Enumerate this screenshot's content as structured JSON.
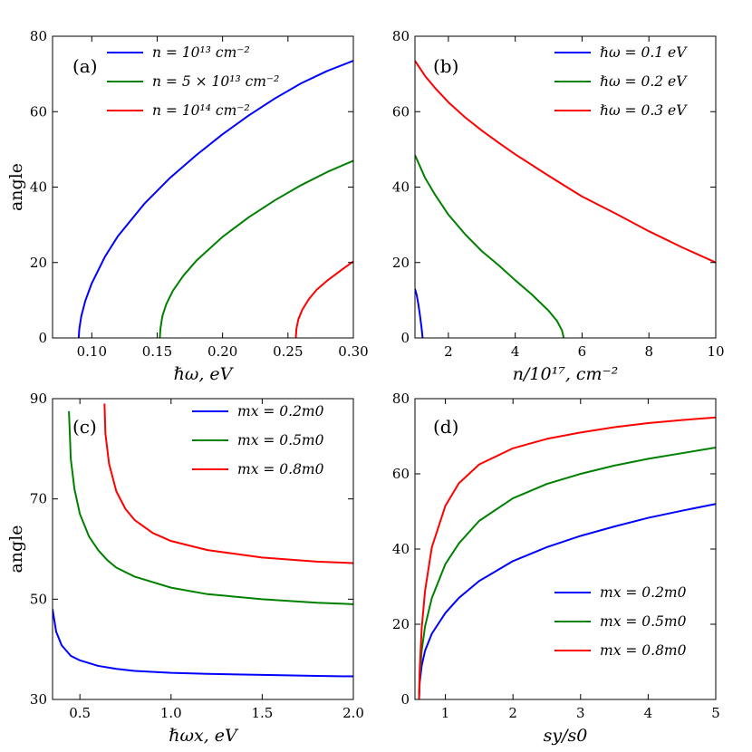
{
  "chart_data": [
    {
      "id": "a",
      "type": "line",
      "panel_label": "(a)",
      "xlabel": "ℏω, eV",
      "ylabel": "angle",
      "xlim": [
        0.07,
        0.3
      ],
      "ylim": [
        0,
        80
      ],
      "xticks": [
        0.1,
        0.15,
        0.2,
        0.25,
        0.3
      ],
      "xtick_labels": [
        "0.10",
        "0.15",
        "0.20",
        "0.25",
        "0.30"
      ],
      "yticks": [
        0,
        20,
        40,
        60,
        80
      ],
      "ytick_labels": [
        "0",
        "20",
        "40",
        "60",
        "80"
      ],
      "legend_position": "top-left",
      "series": [
        {
          "name": "n = 10¹³ cm⁻²",
          "color": "#0000ff",
          "x": [
            0.09,
            0.0905,
            0.092,
            0.095,
            0.1,
            0.11,
            0.12,
            0.14,
            0.16,
            0.18,
            0.2,
            0.22,
            0.24,
            0.26,
            0.28,
            0.3
          ],
          "y": [
            0,
            2.5,
            5.8,
            9.8,
            14.5,
            21.5,
            27.0,
            35.5,
            42.5,
            48.5,
            54.0,
            59.0,
            63.5,
            67.5,
            70.8,
            73.5
          ]
        },
        {
          "name": "n = 5 × 10¹³ cm⁻²",
          "color": "#008000",
          "x": [
            0.152,
            0.1525,
            0.154,
            0.157,
            0.162,
            0.17,
            0.18,
            0.2,
            0.22,
            0.24,
            0.26,
            0.28,
            0.3
          ],
          "y": [
            0,
            2.5,
            5.8,
            9.0,
            12.5,
            16.5,
            20.5,
            26.8,
            32.0,
            36.5,
            40.5,
            44.0,
            47.0
          ]
        },
        {
          "name": "n = 10¹⁴ cm⁻²",
          "color": "#ff0000",
          "x": [
            0.256,
            0.2565,
            0.258,
            0.261,
            0.266,
            0.272,
            0.28,
            0.29,
            0.3
          ],
          "y": [
            0,
            2.5,
            5.0,
            7.5,
            10.3,
            12.8,
            15.2,
            17.8,
            20.3
          ]
        }
      ]
    },
    {
      "id": "b",
      "type": "line",
      "panel_label": "(b)",
      "xlabel": "n/10¹⁷, cm⁻²",
      "ylabel": "",
      "xlim": [
        1,
        10
      ],
      "ylim": [
        0,
        80
      ],
      "xticks": [
        2,
        4,
        6,
        8,
        10
      ],
      "xtick_labels": [
        "2",
        "4",
        "6",
        "8",
        "10"
      ],
      "yticks": [
        0,
        20,
        40,
        60,
        80
      ],
      "ytick_labels": [
        "0",
        "20",
        "40",
        "60",
        "80"
      ],
      "legend_position": "top-right",
      "series": [
        {
          "name": "ℏω = 0.1 eV",
          "color": "#0000ff",
          "x": [
            1.0,
            1.05,
            1.1,
            1.15,
            1.2,
            1.23
          ],
          "y": [
            13.0,
            11.5,
            9.0,
            6.0,
            2.5,
            0
          ]
        },
        {
          "name": "ℏω = 0.2 eV",
          "color": "#008000",
          "x": [
            1.0,
            1.3,
            1.6,
            2.0,
            2.5,
            3.0,
            3.5,
            4.0,
            4.5,
            5.0,
            5.25,
            5.4,
            5.45
          ],
          "y": [
            48.5,
            42.5,
            38.0,
            32.7,
            27.5,
            23.0,
            19.3,
            15.3,
            11.5,
            7.2,
            4.5,
            2.0,
            0
          ]
        },
        {
          "name": "ℏω = 0.3 eV",
          "color": "#ff0000",
          "x": [
            1.0,
            1.3,
            1.6,
            2.0,
            2.5,
            3.0,
            3.5,
            4.0,
            5.0,
            6.0,
            7.0,
            8.0,
            9.0,
            10.0
          ],
          "y": [
            73.5,
            69.5,
            66.3,
            62.5,
            58.5,
            55.0,
            51.8,
            48.7,
            43.0,
            37.5,
            33.0,
            28.3,
            24.0,
            20.0
          ]
        }
      ]
    },
    {
      "id": "c",
      "type": "line",
      "panel_label": "(c)",
      "xlabel": "ℏωx, eV",
      "ylabel": "angle",
      "xlim": [
        0.35,
        2.0
      ],
      "ylim": [
        30,
        90
      ],
      "xticks": [
        0.5,
        1.0,
        1.5,
        2.0
      ],
      "xtick_labels": [
        "0.5",
        "1.0",
        "1.5",
        "2.0"
      ],
      "yticks": [
        30,
        50,
        70,
        90
      ],
      "ytick_labels": [
        "30",
        "50",
        "70",
        "90"
      ],
      "legend_position": "top-right",
      "series": [
        {
          "name": "mx = 0.2m0",
          "color": "#0000ff",
          "x": [
            0.35,
            0.37,
            0.4,
            0.45,
            0.5,
            0.6,
            0.7,
            0.8,
            1.0,
            1.2,
            1.5,
            1.8,
            2.0
          ],
          "y": [
            48.0,
            43.5,
            40.8,
            38.7,
            37.8,
            36.7,
            36.1,
            35.7,
            35.3,
            35.1,
            34.9,
            34.7,
            34.6
          ]
        },
        {
          "name": "mx = 0.5m0",
          "color": "#008000",
          "x": [
            0.44,
            0.45,
            0.47,
            0.5,
            0.55,
            0.6,
            0.65,
            0.7,
            0.8,
            1.0,
            1.2,
            1.5,
            1.8,
            2.0
          ],
          "y": [
            87.5,
            78.0,
            72.0,
            67.0,
            62.5,
            59.8,
            57.8,
            56.3,
            54.5,
            52.3,
            51.0,
            50.0,
            49.3,
            49.0
          ]
        },
        {
          "name": "mx = 0.8m0",
          "color": "#ff0000",
          "x": [
            0.635,
            0.64,
            0.66,
            0.7,
            0.75,
            0.8,
            0.9,
            1.0,
            1.2,
            1.5,
            1.8,
            2.0
          ],
          "y": [
            89.0,
            83.0,
            77.0,
            71.5,
            68.0,
            65.8,
            63.2,
            61.6,
            59.8,
            58.3,
            57.5,
            57.2
          ]
        }
      ]
    },
    {
      "id": "d",
      "type": "line",
      "panel_label": "(d)",
      "xlabel": "sy/s0",
      "ylabel": "",
      "xlim": [
        0.55,
        5.0
      ],
      "ylim": [
        0,
        80
      ],
      "xticks": [
        1,
        2,
        3,
        4,
        5
      ],
      "xtick_labels": [
        "1",
        "2",
        "3",
        "4",
        "5"
      ],
      "yticks": [
        0,
        20,
        40,
        60,
        80
      ],
      "ytick_labels": [
        "0",
        "20",
        "40",
        "60",
        "80"
      ],
      "legend_position": "bottom-right",
      "series": [
        {
          "name": "mx = 0.2m0",
          "color": "#0000ff",
          "x": [
            0.61,
            0.62,
            0.65,
            0.7,
            0.8,
            1.0,
            1.2,
            1.5,
            2.0,
            2.5,
            3.0,
            3.5,
            4.0,
            4.5,
            5.0
          ],
          "y": [
            0,
            4.5,
            9.0,
            13.0,
            17.5,
            23.0,
            27.0,
            31.5,
            36.8,
            40.5,
            43.5,
            46.0,
            48.3,
            50.2,
            52.0
          ]
        },
        {
          "name": "mx = 0.5m0",
          "color": "#008000",
          "x": [
            0.61,
            0.62,
            0.65,
            0.7,
            0.8,
            1.0,
            1.2,
            1.5,
            2.0,
            2.5,
            3.0,
            3.5,
            4.0,
            4.5,
            5.0
          ],
          "y": [
            0,
            6.0,
            13.0,
            19.5,
            27.0,
            36.0,
            41.5,
            47.5,
            53.5,
            57.3,
            60.0,
            62.2,
            64.0,
            65.5,
            67.0
          ]
        },
        {
          "name": "mx = 0.8m0",
          "color": "#ff0000",
          "x": [
            0.61,
            0.62,
            0.65,
            0.7,
            0.8,
            1.0,
            1.2,
            1.5,
            2.0,
            2.5,
            3.0,
            3.5,
            4.0,
            4.5,
            5.0
          ],
          "y": [
            0,
            8.0,
            19.0,
            29.0,
            40.5,
            51.5,
            57.5,
            62.5,
            66.8,
            69.3,
            71.0,
            72.4,
            73.5,
            74.3,
            75.0
          ]
        }
      ]
    }
  ]
}
